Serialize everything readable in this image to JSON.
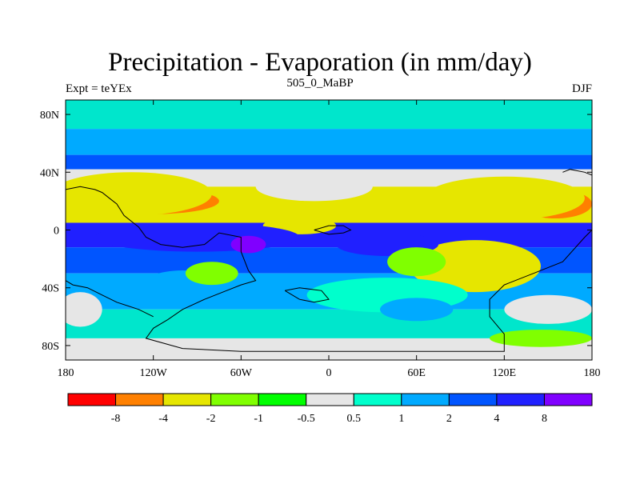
{
  "header": {
    "title": "Precipitation - Evaporation (in mm/day)",
    "subtitle": "505_0_MaBP",
    "left_label": "Expt = teYEx",
    "right_label": "DJF"
  },
  "axes": {
    "x_ticks": [
      {
        "lon": -180,
        "label": "180"
      },
      {
        "lon": -120,
        "label": "120W"
      },
      {
        "lon": -60,
        "label": "60W"
      },
      {
        "lon": 0,
        "label": "0"
      },
      {
        "lon": 60,
        "label": "60E"
      },
      {
        "lon": 120,
        "label": "120E"
      },
      {
        "lon": 180,
        "label": "180"
      }
    ],
    "y_ticks": [
      {
        "lat": 80,
        "label": "80N"
      },
      {
        "lat": 40,
        "label": "40N"
      },
      {
        "lat": 0,
        "label": "0"
      },
      {
        "lat": -40,
        "label": "40S"
      },
      {
        "lat": -80,
        "label": "80S"
      }
    ],
    "lon_range": [
      -180,
      180
    ],
    "lat_range": [
      -90,
      90
    ]
  },
  "colorbar": {
    "colors": [
      "#ff0000",
      "#ff8000",
      "#e6e600",
      "#80ff00",
      "#00ff00",
      "#e6e6e6",
      "#00ffcc",
      "#00aaff",
      "#0055ff",
      "#2020ff",
      "#8000ff"
    ],
    "labels": [
      "-8",
      "-4",
      "-2",
      "-1",
      "-0.5",
      "0.5",
      "1",
      "2",
      "4",
      "8"
    ]
  },
  "bands": [
    {
      "lat": [
        70,
        90
      ],
      "color": "#00e6cc"
    },
    {
      "lat": [
        52,
        70
      ],
      "color": "#00aaff"
    },
    {
      "lat": [
        42,
        52
      ],
      "color": "#0055ff"
    },
    {
      "lat": [
        30,
        42
      ],
      "color": "#e6e6e6"
    },
    {
      "lat": [
        18,
        30
      ],
      "color": "#e6e600"
    },
    {
      "lat": [
        5,
        18
      ],
      "color": "#e6e600"
    },
    {
      "lat": [
        -12,
        5
      ],
      "color": "#2020ff"
    },
    {
      "lat": [
        -30,
        -12
      ],
      "color": "#0055ff"
    },
    {
      "lat": [
        -55,
        -30
      ],
      "color": "#00aaff"
    },
    {
      "lat": [
        -75,
        -55
      ],
      "color": "#00e6cc"
    },
    {
      "lat": [
        -90,
        -75
      ],
      "color": "#e6e6e6"
    }
  ],
  "blobs": [
    {
      "lon": -120,
      "lat": 20,
      "rx": 45,
      "ry": 9,
      "color": "#ff8000"
    },
    {
      "lon": -135,
      "lat": 25,
      "rx": 55,
      "ry": 15,
      "color": "#e6e600"
    },
    {
      "lon": 155,
      "lat": 18,
      "rx": 25,
      "ry": 10,
      "color": "#ff8000"
    },
    {
      "lon": 120,
      "lat": 22,
      "rx": 55,
      "ry": 15,
      "color": "#e6e600"
    },
    {
      "lon": 100,
      "lat": -25,
      "rx": 25,
      "ry": 10,
      "color": "#ff8000"
    },
    {
      "lon": 100,
      "lat": -25,
      "rx": 45,
      "ry": 18,
      "color": "#e6e600"
    },
    {
      "lon": 45,
      "lat": 12,
      "rx": 45,
      "ry": 6,
      "color": "#e6e600"
    },
    {
      "lon": -20,
      "lat": 3,
      "rx": 25,
      "ry": 6,
      "color": "#e6e600"
    },
    {
      "lon": -10,
      "lat": 30,
      "rx": 40,
      "ry": 10,
      "color": "#e6e6e6"
    },
    {
      "lon": -90,
      "lat": -5,
      "rx": 70,
      "ry": 10,
      "color": "#2020ff"
    },
    {
      "lon": 40,
      "lat": -10,
      "rx": 35,
      "ry": 8,
      "color": "#2020ff"
    },
    {
      "lon": -55,
      "lat": -10,
      "rx": 12,
      "ry": 6,
      "color": "#8000ff"
    },
    {
      "lon": -100,
      "lat": -40,
      "rx": 30,
      "ry": 12,
      "color": "#00aaff"
    },
    {
      "lon": -80,
      "lat": -30,
      "rx": 18,
      "ry": 8,
      "color": "#80ff00"
    },
    {
      "lon": 40,
      "lat": -45,
      "rx": 55,
      "ry": 12,
      "color": "#00ffcc"
    },
    {
      "lon": 145,
      "lat": -75,
      "rx": 35,
      "ry": 6,
      "color": "#80ff00"
    },
    {
      "lon": 150,
      "lat": -55,
      "rx": 30,
      "ry": 10,
      "color": "#e6e6e6"
    },
    {
      "lon": -170,
      "lat": -55,
      "rx": 15,
      "ry": 12,
      "color": "#e6e6e6"
    },
    {
      "lon": 60,
      "lat": -22,
      "rx": 20,
      "ry": 10,
      "color": "#80ff00"
    },
    {
      "lon": 60,
      "lat": -55,
      "rx": 25,
      "ry": 8,
      "color": "#00aaff"
    }
  ],
  "coastlines": [
    [
      [
        -180,
        28
      ],
      [
        -170,
        30
      ],
      [
        -160,
        28
      ],
      [
        -155,
        26
      ],
      [
        -150,
        22
      ],
      [
        -145,
        18
      ],
      [
        -140,
        10
      ],
      [
        -130,
        2
      ],
      [
        -125,
        -5
      ],
      [
        -115,
        -10
      ],
      [
        -100,
        -12
      ],
      [
        -85,
        -10
      ],
      [
        -75,
        -2
      ],
      [
        -60,
        -5
      ],
      [
        -60,
        -15
      ],
      [
        -55,
        -28
      ],
      [
        -50,
        -35
      ],
      [
        -60,
        -38
      ],
      [
        -70,
        -42
      ],
      [
        -85,
        -48
      ],
      [
        -100,
        -55
      ],
      [
        -110,
        -62
      ],
      [
        -120,
        -68
      ],
      [
        -125,
        -75
      ],
      [
        -100,
        -82
      ],
      [
        -60,
        -84
      ],
      [
        -20,
        -84
      ],
      [
        20,
        -84
      ],
      [
        60,
        -84
      ],
      [
        100,
        -84
      ],
      [
        120,
        -84
      ],
      [
        120,
        -72
      ],
      [
        110,
        -60
      ],
      [
        110,
        -48
      ],
      [
        120,
        -38
      ],
      [
        140,
        -30
      ],
      [
        160,
        -22
      ],
      [
        175,
        -5
      ],
      [
        180,
        0
      ]
    ],
    [
      [
        -180,
        -35
      ],
      [
        -175,
        -38
      ],
      [
        -165,
        -40
      ],
      [
        -155,
        -45
      ],
      [
        -145,
        -50
      ],
      [
        -130,
        -55
      ],
      [
        -120,
        -60
      ]
    ],
    [
      [
        -10,
        0
      ],
      [
        0,
        -3
      ],
      [
        10,
        -2
      ],
      [
        15,
        0
      ],
      [
        10,
        3
      ],
      [
        0,
        3
      ],
      [
        -10,
        0
      ]
    ],
    [
      [
        160,
        40
      ],
      [
        165,
        42
      ],
      [
        175,
        40
      ],
      [
        180,
        38
      ]
    ],
    [
      [
        -30,
        -42
      ],
      [
        -20,
        -48
      ],
      [
        -10,
        -50
      ],
      [
        0,
        -48
      ],
      [
        -5,
        -42
      ],
      [
        -20,
        -40
      ],
      [
        -30,
        -42
      ]
    ]
  ]
}
